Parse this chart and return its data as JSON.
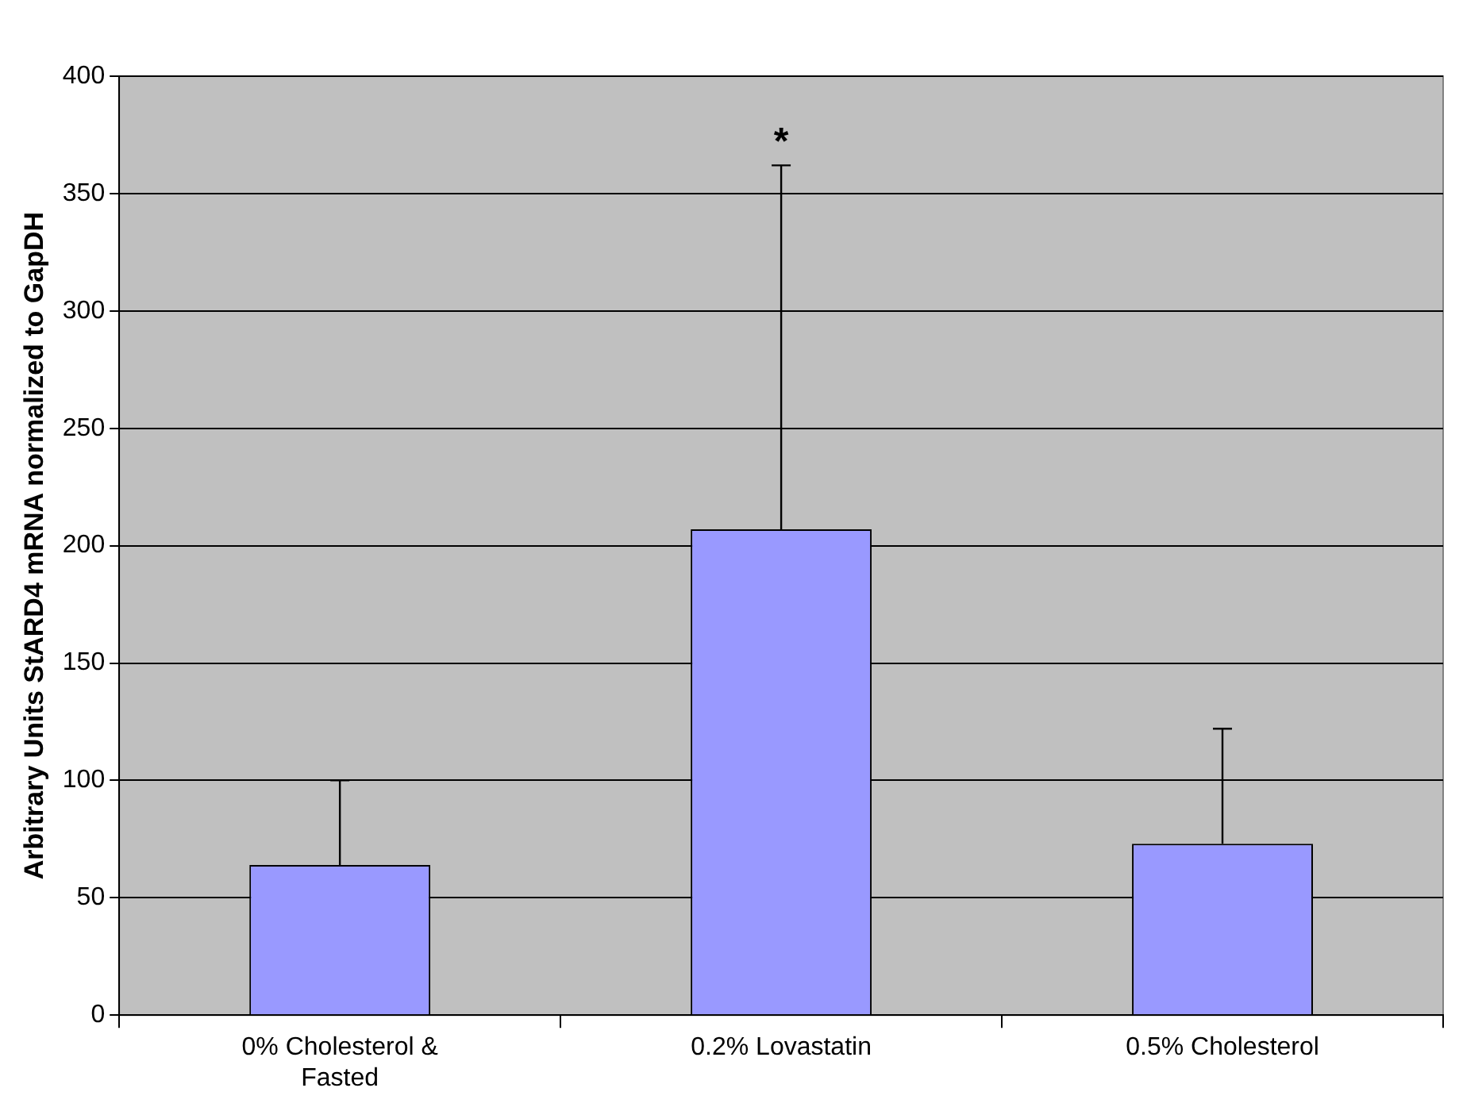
{
  "chart_data": {
    "type": "bar",
    "ylabel": "Arbitrary Units StARD4 mRNA normalized to GapDH",
    "categories": [
      "0% Cholesterol & Fasted",
      "0.2% Lovastatin",
      "0.5% Cholesterol"
    ],
    "values": [
      64,
      207,
      73
    ],
    "color": "#9999ff",
    "errors": [
      [
        64,
        100
      ],
      [
        207,
        362
      ],
      [
        73,
        122
      ]
    ],
    "ylim": [
      0,
      400
    ],
    "yticks": [
      0,
      50,
      100,
      150,
      200,
      250,
      300,
      350,
      400
    ],
    "grid": "y",
    "annotations": [
      "*"
    ]
  }
}
